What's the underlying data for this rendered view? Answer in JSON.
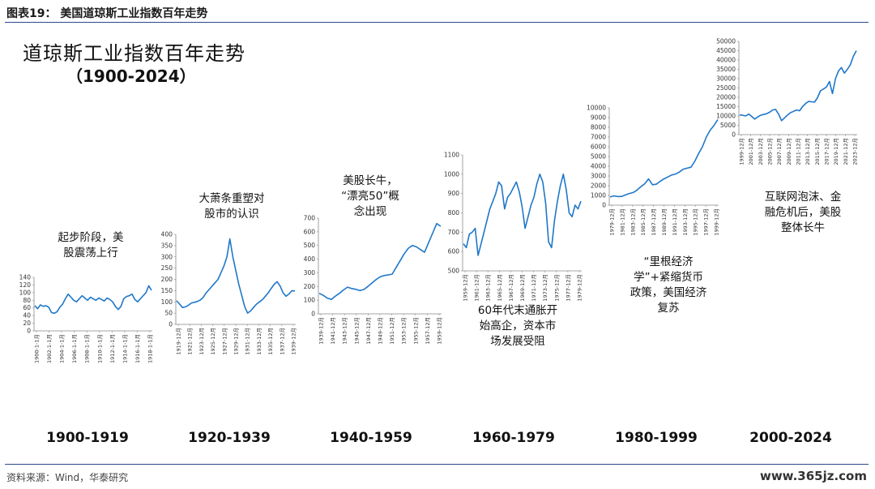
{
  "header": {
    "figure_title": "图表19：  美国道琼斯工业指数百年走势",
    "main_title": "道琼斯工业指数百年走势",
    "main_subtitle": "（1900-2024）"
  },
  "annotations": {
    "a1": "起步阶段，美\n股震荡上行",
    "a2": "大萧条重塑对\n股市的认识",
    "a3": "美股长牛，\n“漂亮50”概\n念出现",
    "a4": "60年代末通胀开\n始高企，资本市\n场发展受阻",
    "a5": "“里根经济\n学”+紧缩货币\n政策，美国经济\n复苏",
    "a6": "互联网泡沫、金\n融危机后，美股\n整体长牛"
  },
  "periods": [
    "1900-1919",
    "1920-1939",
    "1940-1959",
    "1960-1979",
    "1980-1999",
    "2000-2024"
  ],
  "footer": {
    "source": "资料来源：Wind，华泰研究",
    "watermark": "www.365jz.com"
  },
  "style": {
    "line_color": "#1f77c9",
    "rule_color": "#2a4a8a"
  },
  "chart_data": [
    {
      "type": "line",
      "ylim": [
        0,
        140
      ],
      "yticks": [
        0,
        20,
        40,
        60,
        80,
        100,
        120,
        140
      ],
      "xticks": [
        "1900-1-1月",
        "1902-1-1月",
        "1904-1-1月",
        "1906-1-1月",
        "1908-1-1月",
        "1910-1-1月",
        "1912-1-1月",
        "1914-1-1月",
        "1916-1-1月",
        "1918-1-1月"
      ],
      "values": [
        66,
        58,
        68,
        64,
        66,
        62,
        48,
        46,
        50,
        62,
        70,
        84,
        96,
        88,
        80,
        76,
        84,
        92,
        86,
        80,
        88,
        84,
        80,
        86,
        82,
        78,
        86,
        82,
        76,
        64,
        56,
        64,
        84,
        90,
        92,
        96,
        82,
        76,
        84,
        92,
        100,
        118,
        106
      ]
    },
    {
      "type": "line",
      "ylim": [
        0,
        400
      ],
      "yticks": [
        0,
        50,
        100,
        150,
        200,
        250,
        300,
        350,
        400
      ],
      "xticks": [
        "1919-12月",
        "1921-12月",
        "1923-12月",
        "1925-12月",
        "1927-12月",
        "1929-12月",
        "1931-12月",
        "1933-12月",
        "1935-12月",
        "1937-12月",
        "1939-12月"
      ],
      "values": [
        105,
        90,
        75,
        78,
        85,
        95,
        98,
        102,
        108,
        120,
        140,
        155,
        170,
        185,
        200,
        230,
        260,
        300,
        380,
        300,
        240,
        180,
        130,
        80,
        50,
        60,
        75,
        90,
        100,
        110,
        125,
        140,
        160,
        178,
        190,
        170,
        140,
        125,
        135,
        150,
        148
      ]
    },
    {
      "type": "line",
      "ylim": [
        0,
        700
      ],
      "yticks": [
        0,
        100,
        200,
        300,
        400,
        500,
        600,
        700
      ],
      "xticks": [
        "1939-12月",
        "1941-12月",
        "1943-12月",
        "1945-12月",
        "1947-12月",
        "1949-12月",
        "1951-12月",
        "1953-12月",
        "1955-12月",
        "1957-12月",
        "1959-12月"
      ],
      "values": [
        150,
        135,
        115,
        105,
        130,
        150,
        175,
        195,
        185,
        180,
        170,
        178,
        200,
        225,
        250,
        270,
        280,
        285,
        290,
        340,
        390,
        440,
        480,
        500,
        490,
        470,
        450,
        520,
        590,
        660,
        640
      ]
    },
    {
      "type": "line",
      "ylim": [
        500,
        1100
      ],
      "yticks": [
        500,
        600,
        700,
        800,
        900,
        1000,
        1100
      ],
      "xticks": [
        "1959-12月",
        "1961-12月",
        "1963-12月",
        "1965-12月",
        "1967-12月",
        "1969-12月",
        "1971-12月",
        "1973-12月",
        "1975-12月",
        "1977-12月",
        "1979-12月"
      ],
      "values": [
        640,
        620,
        690,
        700,
        720,
        580,
        640,
        700,
        760,
        820,
        860,
        900,
        960,
        940,
        820,
        880,
        900,
        930,
        960,
        910,
        830,
        720,
        780,
        840,
        880,
        950,
        1000,
        960,
        850,
        650,
        620,
        760,
        860,
        940,
        1000,
        920,
        800,
        780,
        840,
        820,
        860
      ]
    },
    {
      "type": "line",
      "ylim": [
        0,
        10000
      ],
      "yticks": [
        0,
        1000,
        2000,
        3000,
        4000,
        5000,
        6000,
        7000,
        8000,
        9000,
        10000
      ],
      "xticks": [
        "1979-12月",
        "1981-12月",
        "1983-12月",
        "1985-12月",
        "1987-12月",
        "1989-12月",
        "1991-12月",
        "1993-12月",
        "1995-12月",
        "1997-12月",
        "1999-12月"
      ],
      "values": [
        840,
        960,
        880,
        900,
        1050,
        1200,
        1300,
        1550,
        1900,
        2200,
        2700,
        2100,
        2150,
        2450,
        2700,
        2900,
        3100,
        3200,
        3400,
        3700,
        3800,
        3900,
        4500,
        5300,
        6000,
        7000,
        7700,
        8200,
        8800
      ]
    },
    {
      "type": "line",
      "ylim": [
        0,
        50000
      ],
      "yticks": [
        0,
        5000,
        10000,
        15000,
        20000,
        25000,
        30000,
        35000,
        40000,
        45000,
        50000
      ],
      "xticks": [
        "1999-12月",
        "2001-12月",
        "2003-12月",
        "2005-12月",
        "2007-12月",
        "2009-12月",
        "2011-12月",
        "2013-12月",
        "2015-12月",
        "2017-12月",
        "2019-12月",
        "2021-12月",
        "2023-12月"
      ],
      "values": [
        10500,
        10400,
        10000,
        11000,
        9800,
        8300,
        9500,
        10400,
        10800,
        11200,
        12000,
        13200,
        13500,
        11000,
        7500,
        9000,
        10500,
        11800,
        12500,
        13200,
        12800,
        15000,
        16600,
        17800,
        17600,
        17400,
        19800,
        23500,
        24500,
        25500,
        28500,
        22000,
        30000,
        34000,
        36000,
        33000,
        35000,
        37500,
        42000,
        45000
      ]
    }
  ]
}
